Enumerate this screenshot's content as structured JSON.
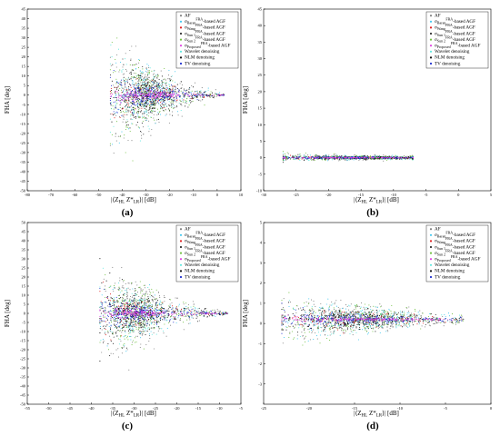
{
  "panel_labels": [
    "(a)",
    "(b)",
    "(c)",
    "(d)"
  ],
  "colors": {
    "AF": "#808080",
    "Baran": "#40c8f0",
    "Wang": "#e02020",
    "Sun1": "#303030",
    "Sun2": "#70c040",
    "Proposed": "#e040e0",
    "Wavelet": "#60e8e0",
    "NLM": "#101010",
    "TV": "#2030d0"
  },
  "chart_data": [
    {
      "type": "scatter",
      "panel": "(a)",
      "ylabel": "FHA [deg]",
      "xlabel": "|⟨Z_HL Z*_LR⟩| [dB]",
      "xlim": [
        -80,
        10
      ],
      "ylim": [
        -50,
        45
      ],
      "xticks": [
        -80,
        -70,
        -60,
        -50,
        -40,
        -30,
        -20,
        -10,
        0,
        10
      ],
      "yticks": [
        -50,
        -45,
        -40,
        -35,
        -30,
        -25,
        -20,
        -15,
        -10,
        -5,
        0,
        5,
        10,
        15,
        20,
        25,
        30,
        35,
        40,
        45
      ],
      "legend_position": "top-right",
      "legend": [
        {
          "key": "AF",
          "text": "AF",
          "marker": "dot"
        },
        {
          "key": "Baran",
          "text": "σ_Baran^FRA-based AGF",
          "marker": "dot"
        },
        {
          "key": "Wang",
          "text": "σ_Wang^FRA-based AGF",
          "marker": "dot"
        },
        {
          "key": "Sun1",
          "text": "σ_Sun 1^FRA-based AGF",
          "marker": "dot"
        },
        {
          "key": "Sun2",
          "text": "σ_Sun 2^FRA-based AGF",
          "marker": "dot"
        },
        {
          "key": "Proposed",
          "text": "σ_Proposed^FRA-based AGF",
          "marker": "dot"
        },
        {
          "key": "Wavelet",
          "text": "Wavelet denoising",
          "marker": "dot"
        },
        {
          "key": "NLM",
          "text": "NLM denoising",
          "marker": "dot"
        },
        {
          "key": "TV",
          "text": "TV denoising",
          "marker": "dot"
        }
      ],
      "cloud": {
        "x_min": -45,
        "x_max": 3,
        "x_center": -30,
        "y_spread_left": 38,
        "y_spread_right": 0.5,
        "center_y": 0
      }
    },
    {
      "type": "scatter",
      "panel": "(b)",
      "ylabel": "FHA [deg]",
      "xlabel": "|⟨Z_HL Z*_LR⟩| [dB]",
      "xlim": [
        -30,
        5
      ],
      "ylim": [
        -10,
        45
      ],
      "xticks": [
        -30,
        -25,
        -20,
        -15,
        -10,
        -5,
        0,
        5
      ],
      "yticks": [
        -10,
        -5,
        0,
        5,
        10,
        15,
        20,
        25,
        30,
        35,
        40,
        45
      ],
      "legend_position": "top-right",
      "legend": [
        {
          "key": "AF",
          "text": "AF",
          "marker": "dot"
        },
        {
          "key": "Baran",
          "text": "σ_Baran^FRA-based AGF",
          "marker": "dot"
        },
        {
          "key": "Wang",
          "text": "σ_Wang^FRA-based AGF",
          "marker": "dot"
        },
        {
          "key": "Sun1",
          "text": "σ_Sun 1^FRA-based AGF",
          "marker": "dot"
        },
        {
          "key": "Sun2",
          "text": "σ_Sun 2^FRA-based AGF",
          "marker": "dot"
        },
        {
          "key": "Proposed",
          "text": "σ_Proposed^FRA-based AGF",
          "marker": "dot"
        },
        {
          "key": "Wavelet",
          "text": "Wavelet denoising",
          "marker": "dot"
        },
        {
          "key": "NLM",
          "text": "NLM denoising",
          "marker": "dot"
        },
        {
          "key": "TV",
          "text": "TV denoising",
          "marker": "dot"
        }
      ],
      "cloud": {
        "x_min": -27,
        "x_max": -7,
        "x_center": -15,
        "y_spread_left": 1.6,
        "y_spread_right": 0.6,
        "center_y": 0
      }
    },
    {
      "type": "scatter",
      "panel": "(c)",
      "ylabel": "FHA [deg]",
      "xlabel": "|⟨Z_HL Z*_LR⟩| [dB]",
      "xlim": [
        -55,
        -5
      ],
      "ylim": [
        -50,
        50
      ],
      "xticks": [
        -55,
        -50,
        -45,
        -40,
        -35,
        -30,
        -25,
        -20,
        -15,
        -10,
        -5
      ],
      "yticks": [
        -50,
        -45,
        -40,
        -35,
        -30,
        -25,
        -20,
        -15,
        -10,
        -5,
        0,
        5,
        10,
        15,
        20,
        25,
        30,
        35,
        40,
        45,
        50
      ],
      "legend_position": "top-right",
      "legend": [
        {
          "key": "AF",
          "text": "AF",
          "marker": "dot"
        },
        {
          "key": "Baran",
          "text": "σ_Baran^FRA-based AGF",
          "marker": "dot"
        },
        {
          "key": "Wang",
          "text": "σ_Wang^FRA-based AGF",
          "marker": "dot"
        },
        {
          "key": "Sun1",
          "text": "σ_Sun 1^FRA-based AGF",
          "marker": "dot"
        },
        {
          "key": "Sun2",
          "text": "σ_Sun 2^FRA-based AGF",
          "marker": "dot"
        },
        {
          "key": "Proposed",
          "text": "σ_Proposed^FRA-based AGF",
          "marker": "dot"
        },
        {
          "key": "Wavelet",
          "text": "Wavelet denoising",
          "marker": "dot"
        },
        {
          "key": "NLM",
          "text": "NLM denoising",
          "marker": "dot"
        },
        {
          "key": "TV",
          "text": "TV denoising",
          "marker": "dot"
        }
      ],
      "cloud": {
        "x_min": -38,
        "x_max": -8,
        "x_center": -30,
        "y_spread_left": 35,
        "y_spread_right": 0.5,
        "center_y": 0
      }
    },
    {
      "type": "scatter",
      "panel": "(d)",
      "ylabel": "FHA [deg]",
      "xlabel": "|⟨Z_HL Z*_LR⟩| [dB]",
      "xlim": [
        -25,
        0
      ],
      "ylim": [
        -4,
        5
      ],
      "xticks": [
        -25,
        -20,
        -15,
        -10,
        -5,
        0
      ],
      "yticks": [
        -3,
        -2,
        -1,
        0,
        1,
        2,
        3,
        4,
        5
      ],
      "legend_position": "top-right",
      "legend": [
        {
          "key": "AF",
          "text": "AF",
          "marker": "dot"
        },
        {
          "key": "Baran",
          "text": "σ_Baran^FRA-based AGF",
          "marker": "dot"
        },
        {
          "key": "Wang",
          "text": "σ_Wang^FRA-based AGF",
          "marker": "dot"
        },
        {
          "key": "Sun1",
          "text": "σ_Sun 1^FRA-based AGF",
          "marker": "dot"
        },
        {
          "key": "Sun2",
          "text": "σ_Sun 2^FRA-based AGF",
          "marker": "dot"
        },
        {
          "key": "Proposed",
          "text": "σ_Proposed^FRA-based AGF",
          "marker": "dot"
        },
        {
          "key": "Wavelet",
          "text": "Wavelet denoising",
          "marker": "dot"
        },
        {
          "key": "NLM",
          "text": "NLM denoising",
          "marker": "dot"
        },
        {
          "key": "TV",
          "text": "TV denoising",
          "marker": "dot"
        }
      ],
      "cloud": {
        "x_min": -23,
        "x_max": -3,
        "x_center": -15,
        "y_spread_left": 1.6,
        "y_spread_right": 0.3,
        "center_y": 0.2
      }
    }
  ]
}
